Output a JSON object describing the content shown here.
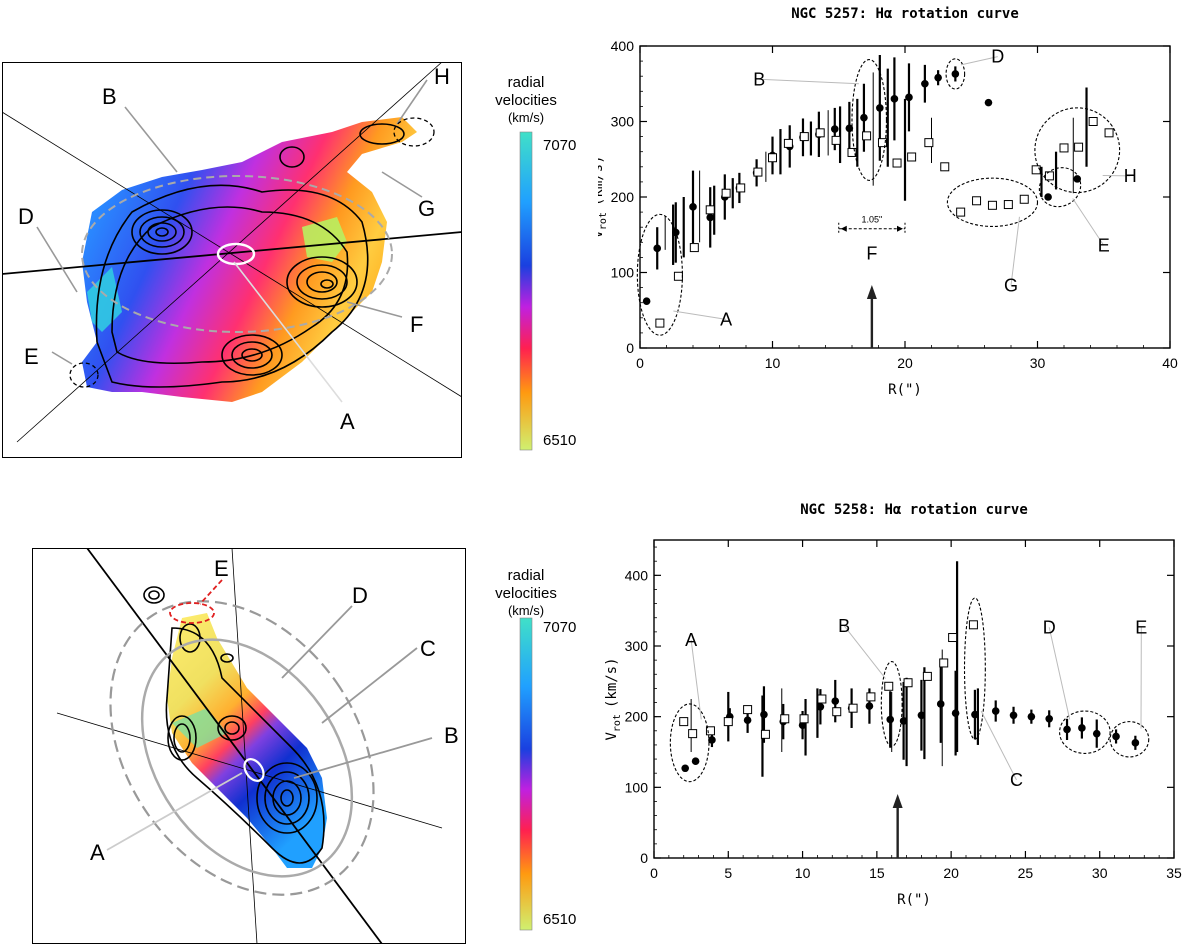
{
  "top_map": {
    "labels": [
      "B",
      "H",
      "D",
      "G",
      "F",
      "E",
      "A"
    ],
    "colorbar": {
      "title_line1": "radial",
      "title_line2": "velocities",
      "unit": "(km/s)",
      "max": "7070",
      "min": "6510"
    }
  },
  "bottom_map": {
    "labels": [
      "E",
      "D",
      "C",
      "B",
      "A"
    ],
    "colorbar": {
      "title_line1": "radial",
      "title_line2": "velocities",
      "unit": "(km/s)",
      "max": "7070",
      "min": "6510"
    }
  },
  "colors": {
    "cb_top": "#40e0c8",
    "cb_mid1": "#1a40e0",
    "cb_mid2": "#c020e0",
    "cb_mid3": "#ff2050",
    "cb_mid4": "#ff9a10",
    "cb_bottom": "#d0f070"
  },
  "chart_data": [
    {
      "type": "scatter",
      "title": "NGC 5257: Hα rotation curve",
      "xlabel": "R(\")",
      "ylabel_main": "V",
      "ylabel_sub": "rot",
      "ylabel_unit": "(km/s)",
      "xlim": [
        0,
        40
      ],
      "ylim": [
        0,
        400
      ],
      "xticks": [
        "0",
        "10",
        "20",
        "30",
        "40"
      ],
      "yticks": [
        "0",
        "100",
        "200",
        "300",
        "400"
      ],
      "scale_bar_label": "1.05\"",
      "arrow_x": 17.5,
      "series": [
        {
          "name": "filled",
          "points": [
            [
              0.5,
              62,
              0
            ],
            [
              1.3,
              132,
              28
            ],
            [
              2.7,
              153,
              40
            ],
            [
              4.0,
              187,
              48
            ],
            [
              5.3,
              173,
              40
            ],
            [
              6.4,
              200,
              30
            ],
            [
              7.5,
              212,
              20
            ],
            [
              8.8,
              232,
              18
            ],
            [
              10.0,
              255,
              25
            ],
            [
              11.3,
              267,
              28
            ],
            [
              12.3,
              279,
              25
            ],
            [
              13.5,
              283,
              30
            ],
            [
              14.7,
              290,
              28
            ],
            [
              15.8,
              291,
              35
            ],
            [
              16.9,
              305,
              45
            ],
            [
              18.1,
              318,
              70
            ],
            [
              19.2,
              330,
              55
            ],
            [
              20.3,
              332,
              45
            ],
            [
              21.5,
              350,
              25
            ],
            [
              22.5,
              358,
              10
            ],
            [
              23.8,
              363,
              10
            ],
            [
              26.3,
              325,
              0
            ],
            [
              30.8,
              200,
              0
            ],
            [
              33.0,
              224,
              0
            ]
          ]
        },
        {
          "name": "open",
          "points": [
            [
              1.5,
              33,
              0
            ],
            [
              2.9,
              95,
              0
            ],
            [
              4.1,
              133,
              0
            ],
            [
              5.3,
              183,
              0
            ],
            [
              6.5,
              205,
              0
            ],
            [
              7.6,
              212,
              0
            ],
            [
              8.9,
              233,
              0
            ],
            [
              10.0,
              252,
              0
            ],
            [
              11.2,
              271,
              0
            ],
            [
              12.4,
              280,
              0
            ],
            [
              13.6,
              285,
              0
            ],
            [
              14.8,
              275,
              0
            ],
            [
              16.0,
              259,
              0
            ],
            [
              17.1,
              281,
              0
            ],
            [
              18.3,
              272,
              0
            ],
            [
              19.4,
              245,
              0
            ],
            [
              20.5,
              253,
              0
            ],
            [
              21.8,
              272,
              0
            ],
            [
              23.0,
              240,
              0
            ],
            [
              24.2,
              180,
              0
            ],
            [
              25.4,
              195,
              0
            ],
            [
              26.6,
              189,
              0
            ],
            [
              27.8,
              190,
              0
            ],
            [
              29.0,
              197,
              0
            ],
            [
              29.9,
              236,
              0
            ],
            [
              30.9,
              228,
              0
            ],
            [
              32.0,
              265,
              0
            ],
            [
              33.1,
              266,
              0
            ],
            [
              34.2,
              300,
              0
            ],
            [
              35.4,
              285,
              0
            ]
          ]
        }
      ],
      "errorbars": [
        [
          1.9,
          130,
          175
        ],
        [
          2.5,
          110,
          190
        ],
        [
          3.3,
          120,
          200
        ],
        [
          4.5,
          140,
          235
        ],
        [
          5.6,
          150,
          215
        ],
        [
          7.0,
          185,
          225
        ],
        [
          9.5,
          220,
          260
        ],
        [
          10.6,
          230,
          290
        ],
        [
          12.9,
          255,
          300
        ],
        [
          14.2,
          255,
          315
        ],
        [
          15.1,
          245,
          320
        ],
        [
          16.4,
          240,
          330
        ],
        [
          17.6,
          215,
          365
        ],
        [
          18.7,
          240,
          370
        ],
        [
          20.0,
          195,
          330
        ],
        [
          22.0,
          245,
          305
        ],
        [
          30.3,
          200,
          240
        ],
        [
          31.4,
          210,
          260
        ],
        [
          32.7,
          205,
          305
        ],
        [
          33.7,
          240,
          345
        ]
      ],
      "annotations": [
        {
          "label": "A",
          "ellipse": [
            1.5,
            97,
            1.7,
            80
          ],
          "label_at": [
            6.5,
            30
          ]
        },
        {
          "label": "B",
          "ellipse": [
            17.3,
            302,
            1.3,
            80
          ],
          "label_at": [
            9.0,
            348
          ]
        },
        {
          "label": "D",
          "ellipse": [
            23.8,
            363,
            0.7,
            20
          ],
          "label_at": [
            27.0,
            378
          ]
        },
        {
          "label": "E",
          "ellipse": [
            31.7,
            213,
            1.6,
            25
          ],
          "label_at": [
            35.0,
            128
          ]
        },
        {
          "label": "F",
          "ellipse": null,
          "label_at": [
            17.5,
            117
          ]
        },
        {
          "label": "G",
          "ellipse": [
            26.6,
            193,
            3.4,
            32
          ],
          "label_at": [
            28.0,
            75
          ]
        },
        {
          "label": "H",
          "ellipse": [
            33.0,
            262,
            3.2,
            56
          ],
          "label_at": [
            37.0,
            220
          ]
        }
      ]
    },
    {
      "type": "scatter",
      "title": "NGC 5258: Hα rotation curve",
      "xlabel": "R(\")",
      "ylabel_main": "V",
      "ylabel_sub": "rot",
      "ylabel_unit": "(km/s)",
      "xlim": [
        0,
        35
      ],
      "ylim": [
        0,
        450
      ],
      "xticks": [
        "0",
        "5",
        "10",
        "15",
        "20",
        "25",
        "30",
        "35"
      ],
      "yticks": [
        "0",
        "100",
        "200",
        "300",
        "400"
      ],
      "arrow_x": 16.4,
      "series": [
        {
          "name": "filled",
          "points": [
            [
              2.1,
              127,
              0
            ],
            [
              2.8,
              137,
              0
            ],
            [
              3.9,
              167,
              10
            ],
            [
              5.1,
              200,
              12
            ],
            [
              6.3,
              195,
              18
            ],
            [
              7.4,
              203,
              40
            ],
            [
              8.7,
              193,
              25
            ],
            [
              10.0,
              188,
              20
            ],
            [
              11.2,
              214,
              25
            ],
            [
              12.2,
              222,
              30
            ],
            [
              13.3,
              212,
              28
            ],
            [
              14.5,
              215,
              25
            ],
            [
              15.9,
              196,
              40
            ],
            [
              16.8,
              194,
              55
            ],
            [
              18.0,
              202,
              50
            ],
            [
              19.3,
              218,
              55
            ],
            [
              20.3,
              205,
              60
            ],
            [
              21.6,
              203,
              35
            ],
            [
              23.0,
              208,
              15
            ],
            [
              24.2,
              202,
              12
            ],
            [
              25.4,
              200,
              10
            ],
            [
              26.6,
              197,
              12
            ],
            [
              27.8,
              182,
              15
            ],
            [
              28.8,
              184,
              15
            ],
            [
              29.8,
              176,
              20
            ],
            [
              31.1,
              172,
              10
            ],
            [
              32.4,
              163,
              10
            ]
          ]
        },
        {
          "name": "open",
          "points": [
            [
              2.0,
              193,
              0
            ],
            [
              2.6,
              176,
              0
            ],
            [
              3.8,
              180,
              0
            ],
            [
              5.0,
              193,
              0
            ],
            [
              6.3,
              210,
              0
            ],
            [
              7.5,
              175,
              0
            ],
            [
              8.8,
              197,
              0
            ],
            [
              10.1,
              197,
              0
            ],
            [
              11.3,
              225,
              0
            ],
            [
              12.3,
              207,
              0
            ],
            [
              13.4,
              212,
              0
            ],
            [
              14.6,
              228,
              0
            ],
            [
              15.8,
              243,
              0
            ],
            [
              17.1,
              248,
              0
            ],
            [
              18.4,
              257,
              0
            ],
            [
              19.5,
              276,
              0
            ],
            [
              20.1,
              312,
              0
            ],
            [
              21.5,
              330,
              0
            ]
          ]
        }
      ],
      "errorbars": [
        [
          2.5,
          150,
          225
        ],
        [
          5.0,
          165,
          235
        ],
        [
          7.3,
          115,
          230
        ],
        [
          8.6,
          150,
          240
        ],
        [
          10.2,
          145,
          225
        ],
        [
          11.0,
          170,
          240
        ],
        [
          16.0,
          150,
          235
        ],
        [
          17.0,
          130,
          255
        ],
        [
          18.2,
          140,
          270
        ],
        [
          19.4,
          130,
          295
        ],
        [
          20.4,
          150,
          420
        ],
        [
          21.8,
          160,
          240
        ]
      ],
      "annotations": [
        {
          "label": "A",
          "ellipse": [
            2.4,
            163,
            1.3,
            55
          ],
          "label_at": [
            2.5,
            300
          ]
        },
        {
          "label": "B",
          "ellipse": [
            16.0,
            218,
            0.7,
            60
          ],
          "label_at": [
            12.8,
            320
          ]
        },
        {
          "label": "C",
          "ellipse": [
            21.6,
            268,
            0.7,
            100
          ],
          "label_at": [
            24.4,
            102
          ]
        },
        {
          "label": "D",
          "ellipse": [
            29.0,
            178,
            1.7,
            30
          ],
          "label_at": [
            26.6,
            318
          ]
        },
        {
          "label": "E",
          "ellipse": [
            32.0,
            168,
            1.3,
            25
          ],
          "label_at": [
            32.8,
            318
          ]
        }
      ]
    }
  ]
}
